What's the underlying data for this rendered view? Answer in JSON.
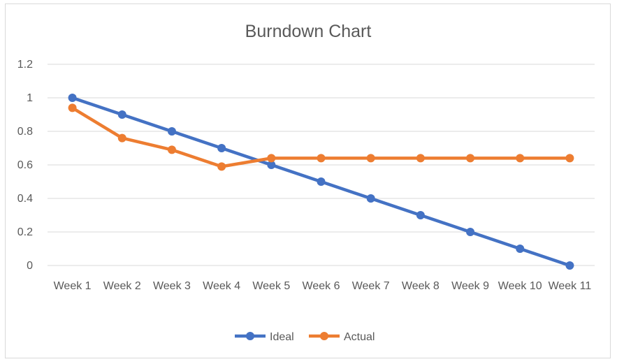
{
  "chart_data": {
    "type": "line",
    "title": "Burndown Chart",
    "categories": [
      "Week 1",
      "Week 2",
      "Week 3",
      "Week 4",
      "Week 5",
      "Week 6",
      "Week 7",
      "Week 8",
      "Week 9",
      "Week 10",
      "Week 11"
    ],
    "y_ticks": [
      "0",
      "0.2",
      "0.4",
      "0.6",
      "0.8",
      "1",
      "1.2"
    ],
    "ylim": [
      0,
      1.2
    ],
    "grid": true,
    "legend_position": "bottom",
    "series": [
      {
        "name": "Ideal",
        "color": "#4472c4",
        "values": [
          1,
          0.9,
          0.8,
          0.7,
          0.6,
          0.5,
          0.4,
          0.3,
          0.2,
          0.1,
          0
        ]
      },
      {
        "name": "Actual",
        "color": "#ed7d31",
        "values": [
          0.94,
          0.76,
          0.69,
          0.59,
          0.64,
          0.64,
          0.64,
          0.64,
          0.64,
          0.64,
          0.64
        ]
      }
    ]
  }
}
